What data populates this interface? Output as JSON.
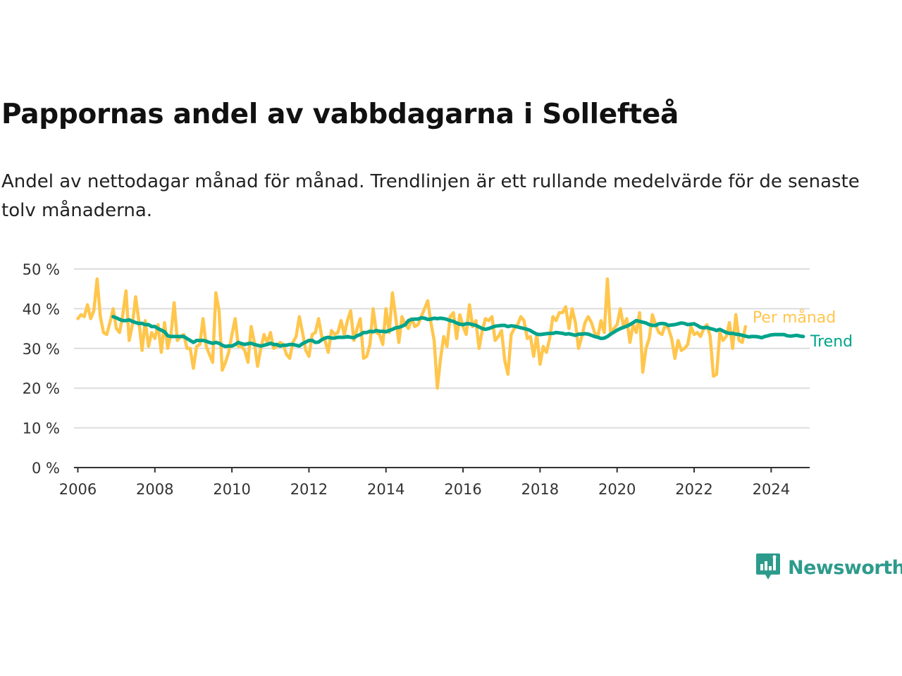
{
  "title": "Pappornas andel av vabbdagarna i Sollefteå",
  "subtitle": "Andel av nettodagar månad för månad. Trendlinjen är ett rullande medelvärde för de senaste tolv månaderna.",
  "brand": {
    "name": "Newsworthy"
  },
  "colors": {
    "monthly": "#FFC64D",
    "trend": "#00A38B",
    "grid": "#DDDDDD",
    "axis": "#333333",
    "brand": "#2D9B8C"
  },
  "chart_data": {
    "type": "line",
    "title": "Pappornas andel av vabbdagarna i Sollefteå",
    "xlabel": "",
    "ylabel": "",
    "x_start": "2006-01",
    "x_interval": "month",
    "xlim": [
      2005.9,
      2025.0
    ],
    "ylim": [
      0,
      50
    ],
    "x_ticks": [
      2006,
      2008,
      2010,
      2012,
      2014,
      2016,
      2018,
      2020,
      2022,
      2024
    ],
    "x_tick_labels": [
      "2006",
      "2008",
      "2010",
      "2012",
      "2014",
      "2016",
      "2018",
      "2020",
      "2022",
      "2024"
    ],
    "y_ticks": [
      0,
      10,
      20,
      30,
      40,
      50
    ],
    "y_tick_labels": [
      "0 %",
      "10 %",
      "20 %",
      "30 %",
      "40 %",
      "50 %"
    ],
    "grid": true,
    "series": [
      {
        "name": "Per månad",
        "values": [
          37.5,
          38.5,
          38,
          41,
          37.5,
          39.5,
          47.5,
          38,
          34,
          33.5,
          36.5,
          40,
          35,
          34,
          38.5,
          44.5,
          32,
          36,
          43,
          37,
          29.5,
          37,
          30.5,
          34,
          32.5,
          36,
          29,
          36.5,
          30,
          33.5,
          41.5,
          32,
          33,
          33.5,
          30,
          30,
          25,
          30.5,
          31,
          37.5,
          30.5,
          28.5,
          26.5,
          44,
          39.5,
          24.5,
          26.5,
          29,
          33.5,
          37.5,
          30.5,
          30.5,
          29.5,
          26.5,
          35.5,
          31.5,
          25.5,
          30,
          33.5,
          31.5,
          34,
          30,
          30.5,
          31.5,
          31,
          28.5,
          27.5,
          31.5,
          33,
          38,
          34,
          29.5,
          28,
          33.5,
          34,
          37.5,
          33,
          32,
          29,
          34.5,
          33.5,
          34,
          37,
          33.5,
          37,
          39.5,
          32,
          35,
          37.5,
          27.5,
          28,
          31,
          40,
          34,
          33.5,
          31,
          40,
          34,
          44,
          38,
          31.5,
          38,
          36,
          35,
          37.5,
          35.5,
          36,
          38,
          40,
          42,
          36.5,
          32,
          20,
          27.5,
          33,
          30.5,
          38,
          39,
          32.5,
          38.5,
          35.5,
          33.5,
          41,
          35.5,
          37,
          30,
          34.5,
          37.5,
          37,
          38,
          32,
          33,
          34.5,
          27,
          23.5,
          33.5,
          35,
          36,
          38,
          37,
          32.5,
          33,
          28,
          33.5,
          26,
          30.5,
          29,
          32.5,
          38,
          37,
          39,
          39,
          40.5,
          35,
          40,
          36.5,
          30,
          33,
          36.5,
          38,
          36.5,
          34,
          33,
          37,
          34,
          47.5,
          33.5,
          35,
          36,
          40,
          35.5,
          37.5,
          31.5,
          36,
          34,
          39,
          24,
          30,
          32.5,
          38.5,
          36,
          34,
          33.5,
          36,
          35,
          32.5,
          27.5,
          32,
          29.5,
          30,
          31,
          35.5,
          33.5,
          34,
          33,
          35,
          36,
          33,
          23,
          23.5,
          34,
          32,
          33,
          36.5,
          30,
          38.5,
          32,
          31.5,
          35.5
        ],
        "color": "#FFC64D"
      },
      {
        "name": "Trend",
        "values": [
          null,
          null,
          null,
          null,
          null,
          null,
          null,
          null,
          null,
          null,
          null,
          38,
          37.7,
          37.3,
          37,
          37,
          37.2,
          36.8,
          36.5,
          36.3,
          36.3,
          36,
          36,
          35.5,
          35.5,
          35,
          34.6,
          34.2,
          33.2,
          33,
          33,
          33,
          33,
          33,
          32.5,
          32,
          31.5,
          32,
          32,
          32,
          31.8,
          31.5,
          31.3,
          31.5,
          31.3,
          30.8,
          30.5,
          30.6,
          30.6,
          31,
          31.5,
          31.2,
          31,
          31.2,
          31.3,
          31,
          30.8,
          30.6,
          30.8,
          31,
          31.3,
          31,
          31,
          30.6,
          30.8,
          30.8,
          31,
          31,
          30.8,
          30.6,
          31.2,
          31.6,
          32,
          32,
          31.5,
          31.6,
          32.2,
          32.6,
          32.8,
          32.6,
          32.6,
          32.8,
          32.8,
          32.8,
          33,
          32.8,
          32.7,
          33.2,
          33.5,
          34,
          34,
          34.3,
          34.2,
          34.5,
          34.3,
          34.3,
          34.2,
          34.5,
          34.8,
          35.2,
          35.3,
          35.6,
          36,
          37,
          37.3,
          37.4,
          37.4,
          37.7,
          37.6,
          37.3,
          37.4,
          37.6,
          37.5,
          37.6,
          37.5,
          37.3,
          37,
          36.8,
          36.4,
          36.1,
          36,
          36.2,
          36.2,
          36,
          35.8,
          35.4,
          35,
          34.8,
          35,
          35.3,
          35.6,
          35.7,
          35.8,
          35.8,
          35.5,
          35.7,
          35.6,
          35.4,
          35.2,
          35,
          34.8,
          34.5,
          34,
          33.6,
          33.5,
          33.6,
          33.7,
          33.8,
          33.8,
          34,
          33.9,
          33.8,
          33.6,
          33.7,
          33.5,
          33.3,
          33.6,
          33.6,
          33.7,
          33.6,
          33.3,
          33,
          32.8,
          32.5,
          32.6,
          33,
          33.6,
          34.1,
          34.6,
          35,
          35.3,
          35.6,
          36,
          36.5,
          37,
          36.8,
          36.6,
          36.4,
          36,
          35.8,
          35.8,
          36.2,
          36.3,
          36.2,
          35.8,
          35.9,
          36,
          36.2,
          36.4,
          36.3,
          36,
          36.1,
          36.2,
          35.8,
          35.3,
          35.2,
          35.3,
          35,
          34.8,
          34.5,
          34.8,
          34.4,
          34,
          33.8,
          33.8,
          33.6,
          33.5,
          33.3,
          33.1,
          32.9,
          33,
          33,
          32.9,
          32.7,
          33,
          33.2,
          33.4,
          33.5,
          33.5,
          33.5,
          33.5,
          33.2,
          33.1,
          33.2,
          33.3,
          33.1,
          33
        ],
        "color": "#00A38B"
      }
    ],
    "legend": "direct-labels-right"
  }
}
